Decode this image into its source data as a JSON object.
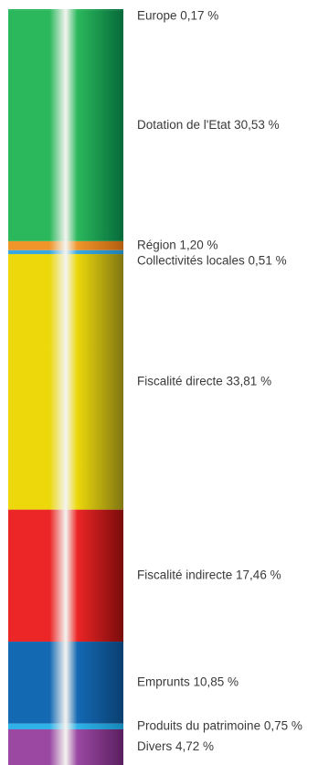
{
  "chart_data": {
    "type": "bar",
    "stacked": true,
    "orientation": "vertical",
    "unit": "%",
    "title": "",
    "xlabel": "",
    "ylabel": "",
    "ylim": [
      0,
      100
    ],
    "grid": false,
    "legend": "none",
    "segments": [
      {
        "id": "europe",
        "label": "Europe 0,17 %",
        "value": 0.17,
        "color_dark": "#066a3a",
        "color_light": "#2bb85c"
      },
      {
        "id": "dotation-etat",
        "label": "Dotation de l'Etat 30,53 %",
        "value": 30.53,
        "color_dark": "#066a3a",
        "color_light": "#2bb85c"
      },
      {
        "id": "region",
        "label": "Région 1,20 %",
        "value": 1.2,
        "color_dark": "#b35e10",
        "color_light": "#f0952a"
      },
      {
        "id": "collectivites-locales",
        "label": "Collectivités locales 0,51 %",
        "value": 0.51,
        "color_dark": "#1f7fb3",
        "color_light": "#3aa8e0"
      },
      {
        "id": "fiscalite-directe",
        "label": "Fiscalité directe 33,81 %",
        "value": 33.81,
        "color_dark": "#807612",
        "color_light": "#ecd80b"
      },
      {
        "id": "fiscalite-indirecte",
        "label": "Fiscalité indirecte 17,46 %",
        "value": 17.46,
        "color_dark": "#7a0b0b",
        "color_light": "#ec2526"
      },
      {
        "id": "emprunts",
        "label": "Emprunts 10,85 %",
        "value": 10.85,
        "color_dark": "#0a3f70",
        "color_light": "#1469b3"
      },
      {
        "id": "produits-patrimoine",
        "label": "Produits du patrimoine 0,75 %",
        "value": 0.75,
        "color_dark": "#1687b8",
        "color_light": "#2eb2e8"
      },
      {
        "id": "divers",
        "label": "Divers 4,72 %",
        "value": 4.72,
        "color_dark": "#5a1f5f",
        "color_light": "#9a48a2"
      }
    ]
  }
}
